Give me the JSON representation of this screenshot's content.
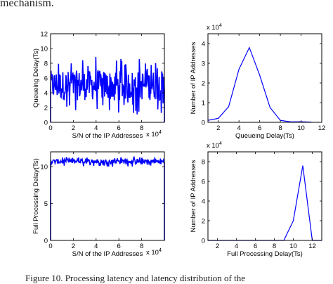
{
  "header_text": "mechanism.",
  "caption_text": "Figure 10.    Processing latency and latency distribution of the",
  "chart_data": [
    {
      "type": "line",
      "ylabel": "Queueing Delay(Ts)",
      "xlabel": "S/N of the IP Addresses",
      "xlim": [
        0,
        100000
      ],
      "ylim": [
        0,
        12
      ],
      "xticks": [
        0,
        2,
        4,
        6,
        8
      ],
      "yticks": [
        0,
        2,
        4,
        6,
        8,
        10,
        12
      ],
      "xexponent": "x 10^4",
      "color": "#0000ff",
      "noise": {
        "range": [
          0,
          100000
        ],
        "typical_band": [
          3,
          7
        ],
        "min": 1,
        "max": 9
      }
    },
    {
      "type": "line",
      "ylabel": "Number of IP Addresses",
      "xlabel": "Queueing Delay(Ts)",
      "xlim": [
        1,
        12
      ],
      "ylim": [
        0,
        45000
      ],
      "xticks": [
        2,
        4,
        6,
        8,
        10,
        12
      ],
      "yticks": [
        0,
        1,
        2,
        3,
        4
      ],
      "yexponent": "x 10^4",
      "color": "#0000ff",
      "x": [
        1,
        2,
        3,
        4,
        5,
        6,
        7,
        8,
        9,
        10,
        11
      ],
      "y": [
        1000,
        2000,
        8000,
        27000,
        38000,
        24000,
        7500,
        1000,
        200,
        300,
        100
      ]
    },
    {
      "type": "line",
      "ylabel": "Full Processing Delay(Ts)",
      "xlabel": "S/N of the IP Addresses",
      "xlim": [
        0,
        100000
      ],
      "ylim": [
        0,
        12
      ],
      "xticks": [
        0,
        2,
        4,
        6,
        8
      ],
      "yticks": [
        0,
        5,
        10
      ],
      "xexponent": "x 10^4",
      "color": "#0000ff",
      "noise": {
        "range": [
          0,
          100000
        ],
        "typical_band": [
          10.4,
          11
        ],
        "min": 10,
        "max": 11.3
      }
    },
    {
      "type": "line",
      "ylabel": "Number of IP Addresses",
      "xlabel": "Full Processing Delay(Ts)",
      "xlim": [
        1,
        13
      ],
      "ylim": [
        0,
        90000
      ],
      "xticks": [
        2,
        4,
        6,
        8,
        10,
        12
      ],
      "yticks": [
        0,
        2,
        4,
        6,
        8
      ],
      "yexponent": "x 10^4",
      "color": "#0000ff",
      "x": [
        1,
        2,
        3,
        4,
        5,
        6,
        7,
        8,
        9,
        10,
        11,
        12,
        13
      ],
      "y": [
        0,
        0,
        0,
        0,
        0,
        0,
        0,
        0,
        0,
        20000,
        76000,
        0,
        0
      ]
    }
  ]
}
